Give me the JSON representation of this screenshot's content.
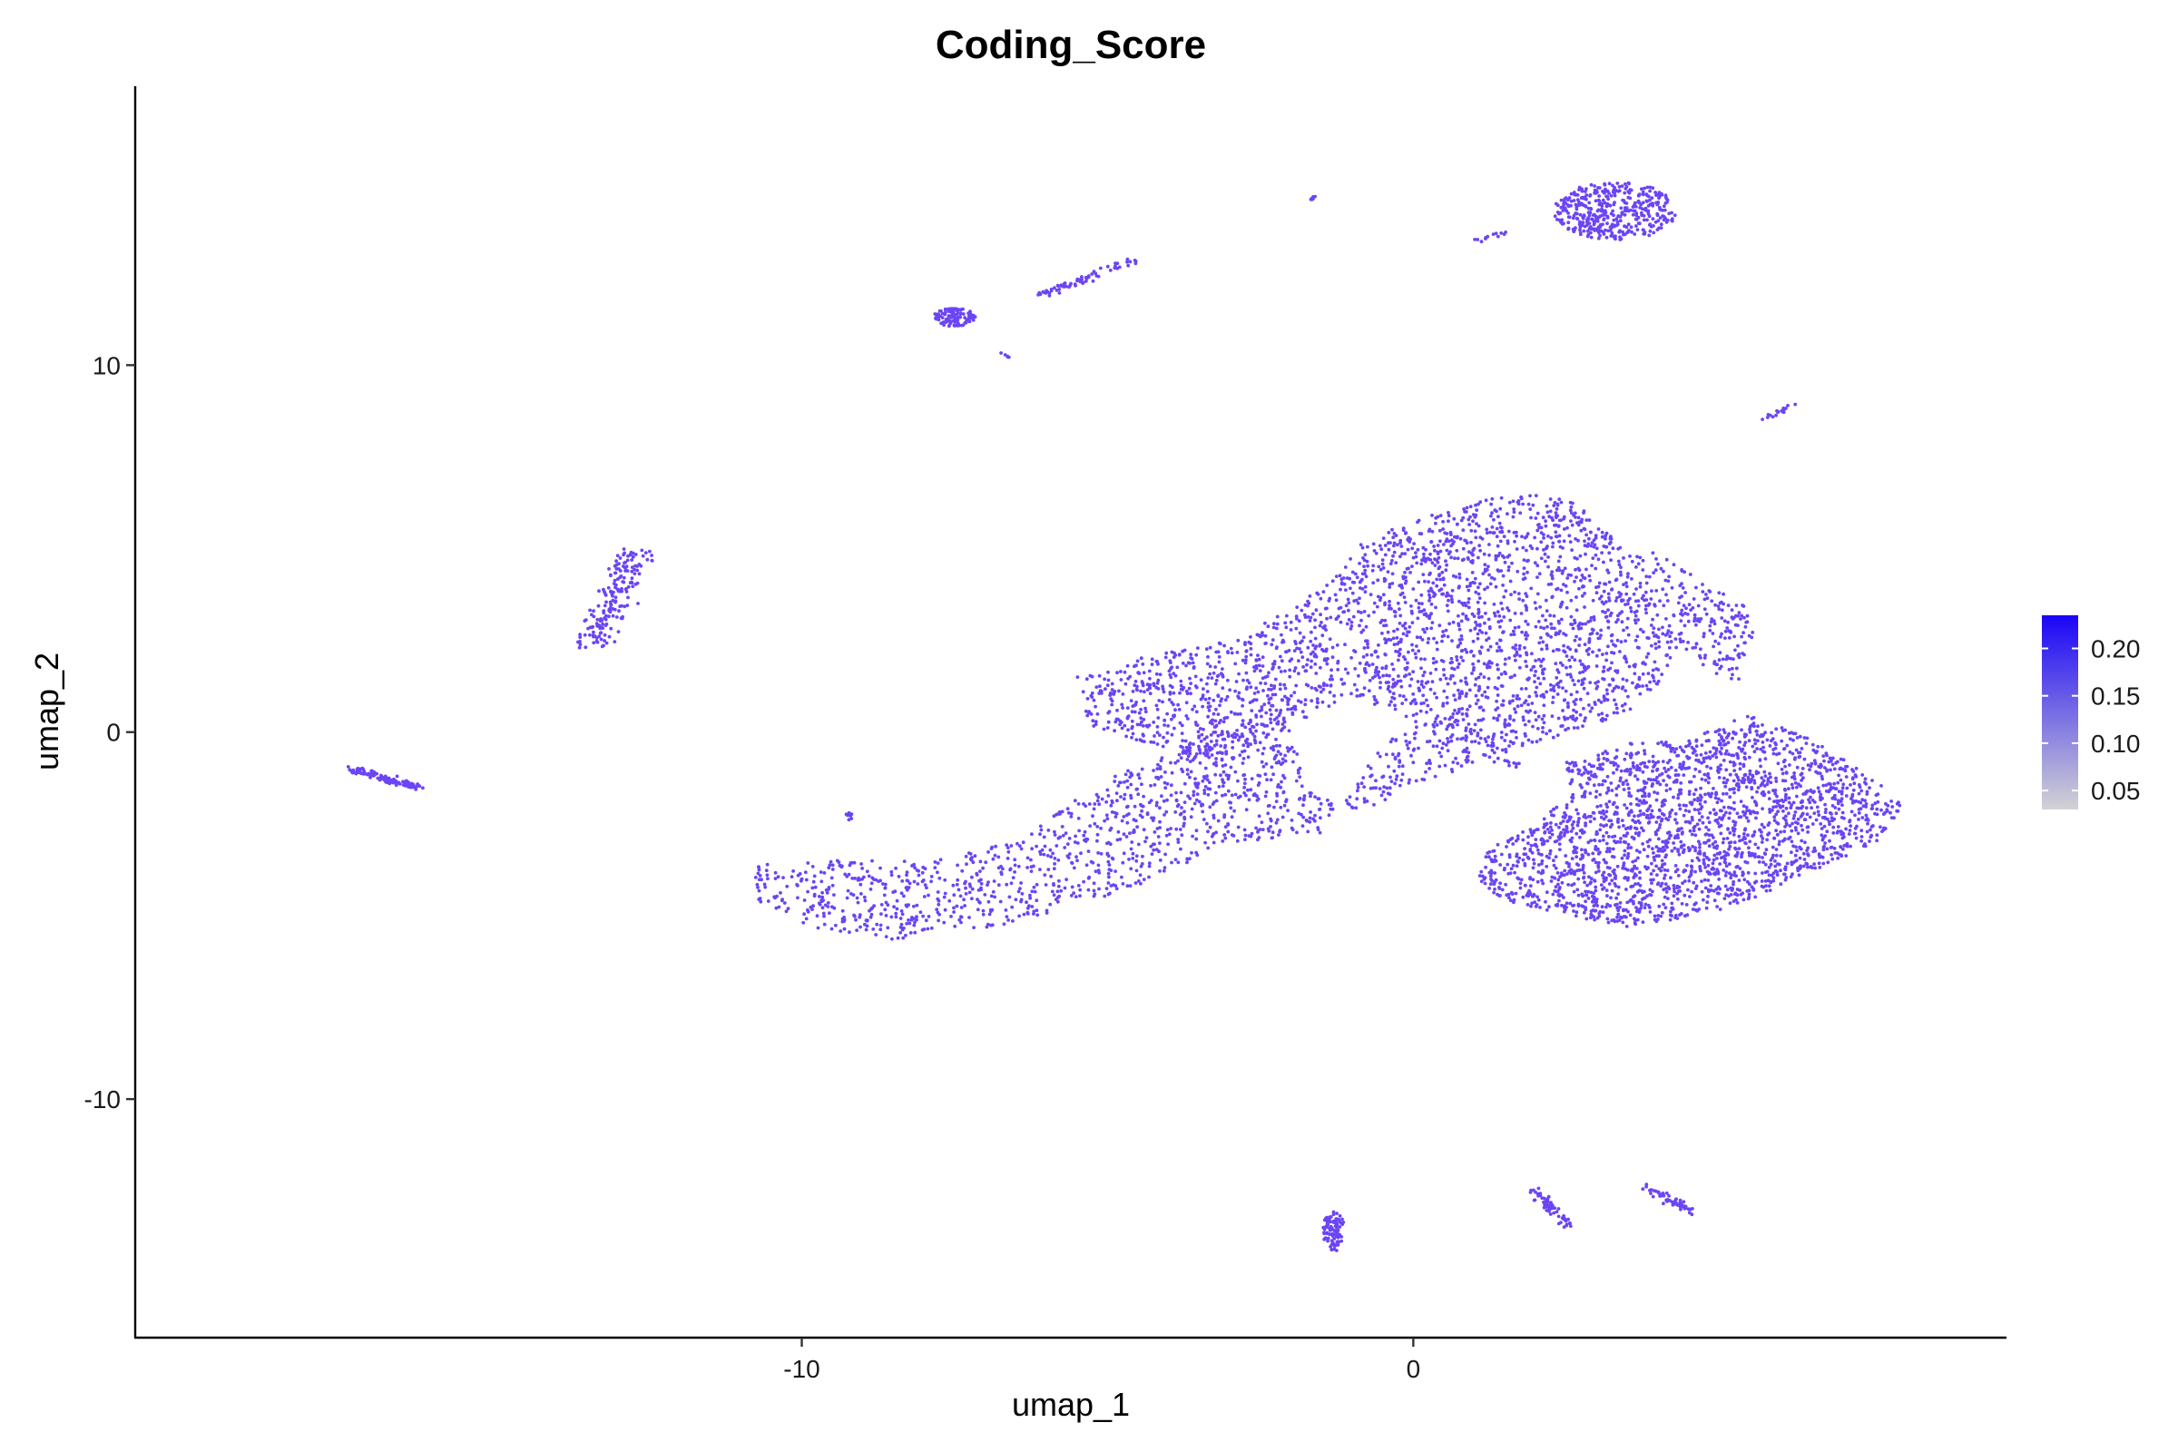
{
  "chart_data": {
    "type": "scatter",
    "title": "Coding_Score",
    "xlabel": "umap_1",
    "ylabel": "umap_2",
    "xlim": [
      -20.9,
      9.7
    ],
    "ylim": [
      -16.5,
      17.6
    ],
    "x_ticks": [
      -10,
      0
    ],
    "y_ticks": [
      10,
      0,
      -10
    ],
    "x_tick_labels": [
      "-10",
      "0"
    ],
    "y_tick_labels": [
      "10",
      "0",
      "-10"
    ],
    "grid": false,
    "point_color": "#6b45f5",
    "colorbar": {
      "position": "right",
      "range": [
        0.03,
        0.235
      ],
      "ticks": [
        0.05,
        0.1,
        0.15,
        0.2
      ],
      "tick_labels": [
        "0.05",
        "0.10",
        "0.15",
        "0.20"
      ],
      "colors": [
        "#d3d3d3",
        "#1a05f7"
      ]
    },
    "clusters": [
      {
        "name": "main-left-arm",
        "kind": "poly",
        "density": 0.55,
        "points": [
          [
            -10.8,
            -3.6
          ],
          [
            -9.5,
            -3.5
          ],
          [
            -8.0,
            -3.5
          ],
          [
            -6.5,
            -3.0
          ],
          [
            -5.0,
            -1.2
          ],
          [
            -3.5,
            -0.3
          ],
          [
            -2.0,
            1.0
          ],
          [
            -1.8,
            -1.5
          ],
          [
            -1.0,
            -2.2
          ],
          [
            0,
            -1.6
          ],
          [
            1.0,
            -0.8
          ],
          [
            1.8,
            -1.0
          ],
          [
            1.5,
            -0.2
          ],
          [
            0.5,
            0.5
          ],
          [
            -0.5,
            -0.3
          ],
          [
            -1.5,
            -2.8
          ],
          [
            -3.0,
            -3.0
          ],
          [
            -4.5,
            -4.2
          ],
          [
            -6.5,
            -5.2
          ],
          [
            -8.5,
            -5.7
          ],
          [
            -9.8,
            -5.4
          ],
          [
            -10.7,
            -4.6
          ]
        ]
      },
      {
        "name": "main-middle-upper",
        "kind": "poly",
        "density": 0.65,
        "points": [
          [
            -5.5,
            1.5
          ],
          [
            -4.5,
            2.0
          ],
          [
            -3.0,
            2.5
          ],
          [
            -1.8,
            3.5
          ],
          [
            -1.0,
            5.0
          ],
          [
            0,
            5.8
          ],
          [
            1.0,
            6.3
          ],
          [
            2.0,
            6.5
          ],
          [
            2.6,
            6.3
          ],
          [
            3.1,
            5.6
          ],
          [
            3.5,
            4.8
          ],
          [
            4.0,
            4.9
          ],
          [
            4.8,
            4.0
          ],
          [
            5.4,
            3.5
          ],
          [
            5.6,
            2.5
          ],
          [
            5.5,
            1.3
          ],
          [
            5.0,
            1.5
          ],
          [
            4.3,
            2.3
          ],
          [
            4.0,
            1.2
          ],
          [
            3.5,
            0.5
          ],
          [
            3.0,
            0.2
          ],
          [
            2.2,
            -0.2
          ],
          [
            1.5,
            -0.5
          ],
          [
            0.8,
            -0.2
          ],
          [
            0,
            0.3
          ],
          [
            -1.0,
            1.0
          ],
          [
            -2.0,
            0.2
          ],
          [
            -3.0,
            -0.8
          ],
          [
            -4.0,
            -0.5
          ],
          [
            -5.3,
            0.2
          ]
        ]
      },
      {
        "name": "main-right-blob",
        "kind": "poly",
        "density": 1.0,
        "points": [
          [
            2.5,
            -0.8
          ],
          [
            3.5,
            -0.3
          ],
          [
            4.5,
            -0.2
          ],
          [
            5.5,
            0.5
          ],
          [
            6.5,
            -0.2
          ],
          [
            7.5,
            -1.2
          ],
          [
            8.0,
            -2.0
          ],
          [
            7.6,
            -3.0
          ],
          [
            6.5,
            -3.8
          ],
          [
            5.5,
            -4.6
          ],
          [
            4.5,
            -5.1
          ],
          [
            3.5,
            -5.3
          ],
          [
            2.5,
            -5.0
          ],
          [
            1.5,
            -4.6
          ],
          [
            1.0,
            -4.0
          ],
          [
            1.3,
            -3.0
          ],
          [
            2.0,
            -2.5
          ],
          [
            2.5,
            -1.8
          ]
        ]
      },
      {
        "name": "top-right-cluster",
        "kind": "ellipse",
        "cx": 3.3,
        "cy": 14.2,
        "rx": 1.0,
        "ry": 0.8,
        "n": 420
      },
      {
        "name": "small-cluster-a",
        "kind": "ellipse",
        "cx": -7.5,
        "cy": 11.3,
        "rx": 0.35,
        "ry": 0.25,
        "n": 110
      },
      {
        "name": "small-cluster-b",
        "kind": "ellipse",
        "cx": -1.3,
        "cy": -13.6,
        "rx": 0.18,
        "ry": 0.55,
        "n": 90
      },
      {
        "name": "strand-1",
        "kind": "line",
        "x1": -17.4,
        "y1": -1.0,
        "x2": -16.3,
        "y2": -1.5,
        "n": 110,
        "spread": 0.05
      },
      {
        "name": "strand-2",
        "kind": "line",
        "x1": -13.4,
        "y1": 2.4,
        "x2": -12.7,
        "y2": 4.9,
        "n": 180,
        "spread": 0.15
      },
      {
        "name": "strand-3",
        "kind": "line",
        "x1": -6.1,
        "y1": 11.9,
        "x2": -4.5,
        "y2": 12.9,
        "n": 70,
        "spread": 0.05
      },
      {
        "name": "strand-4",
        "kind": "line",
        "x1": 1.9,
        "y1": -12.4,
        "x2": 2.6,
        "y2": -13.5,
        "n": 60,
        "spread": 0.06
      },
      {
        "name": "strand-5",
        "kind": "line",
        "x1": 3.8,
        "y1": -12.4,
        "x2": 4.6,
        "y2": -13.1,
        "n": 60,
        "spread": 0.05
      },
      {
        "name": "strand-6",
        "kind": "line",
        "x1": 5.7,
        "y1": 8.5,
        "x2": 6.2,
        "y2": 8.9,
        "n": 18,
        "spread": 0.03
      },
      {
        "name": "strand-7",
        "kind": "line",
        "x1": 1.0,
        "y1": 13.4,
        "x2": 1.5,
        "y2": 13.6,
        "n": 12,
        "spread": 0.03
      },
      {
        "name": "tiny-1",
        "kind": "line",
        "x1": -1.7,
        "y1": 14.5,
        "x2": -1.6,
        "y2": 14.6,
        "n": 6,
        "spread": 0.02
      },
      {
        "name": "tiny-2",
        "kind": "line",
        "x1": -9.3,
        "y1": -2.5,
        "x2": -9.2,
        "y2": -2.2,
        "n": 8,
        "spread": 0.04
      },
      {
        "name": "tiny-3",
        "kind": "line",
        "x1": -6.8,
        "y1": 10.3,
        "x2": -6.6,
        "y2": 10.2,
        "n": 5,
        "spread": 0.02
      }
    ]
  }
}
